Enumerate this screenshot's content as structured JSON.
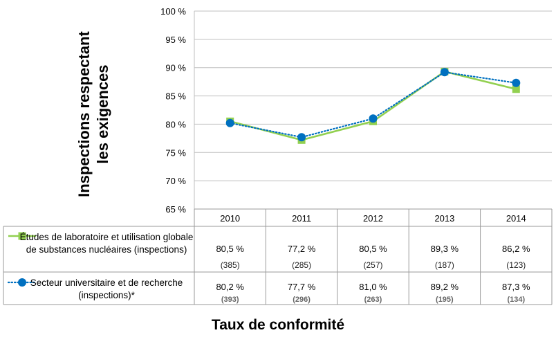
{
  "chart_data": {
    "type": "line",
    "ylabel": "Inspections respectant les exigences",
    "xlabel": "Taux de conformité",
    "ylim": [
      65,
      100
    ],
    "yticks": [
      "65 %",
      "70 %",
      "75 %",
      "80 %",
      "85 %",
      "90 %",
      "95 %",
      "100 %"
    ],
    "ytick_values": [
      65,
      70,
      75,
      80,
      85,
      90,
      95,
      100
    ],
    "categories": [
      "2010",
      "2011",
      "2012",
      "2013",
      "2014"
    ],
    "grid": "horizontal",
    "series": [
      {
        "name": "Études de laboratoire et utilisation globale de substances nucléaires (inspections)",
        "values": [
          80.5,
          77.2,
          80.5,
          89.3,
          86.2
        ],
        "labels": [
          "80,5 %",
          "77,2 %",
          "80,5 %",
          "89,3 %",
          "86,2 %"
        ],
        "counts": [
          "(385)",
          "(285)",
          "(257)",
          "(187)",
          "(123)"
        ],
        "color": "#92d050",
        "marker": "square",
        "line": "solid"
      },
      {
        "name": "Secteur universitaire et de recherche (inspections)*",
        "values": [
          80.2,
          77.7,
          81.0,
          89.2,
          87.3
        ],
        "labels": [
          "80,2 %",
          "77,7 %",
          "81,0 %",
          "89,2 %",
          "87,3 %"
        ],
        "counts": [
          "(393)",
          "(296)",
          "(263)",
          "(195)",
          "(134)"
        ],
        "color": "#0070c0",
        "marker": "circle",
        "line": "dotted"
      }
    ]
  }
}
